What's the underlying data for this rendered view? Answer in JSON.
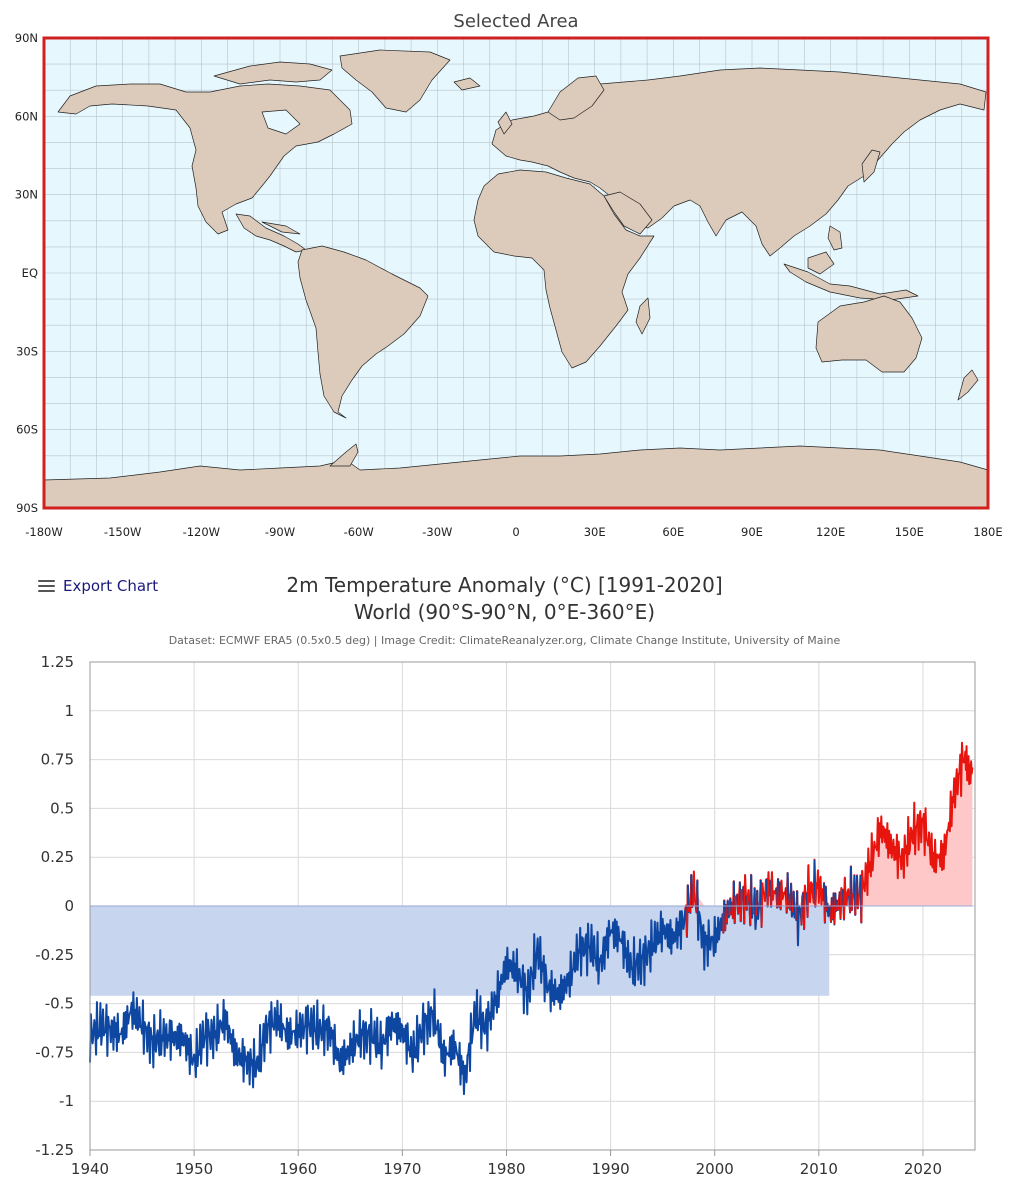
{
  "map": {
    "title": "Selected Area",
    "lat_labels": [
      "90N",
      "60N",
      "30N",
      "EQ",
      "30S",
      "60S",
      "90S"
    ],
    "lon_labels": [
      "-180W",
      "-150W",
      "-120W",
      "-90W",
      "-60W",
      "-30W",
      "0",
      "30E",
      "60E",
      "90E",
      "120E",
      "150E",
      "180E"
    ],
    "colors": {
      "ocean": "#e6f7fd",
      "land": "#dccbbb",
      "border": "#d21f1f",
      "grid": "#b9c3cc"
    }
  },
  "toolbar": {
    "export_label": "Export Chart",
    "menu_icon": "hamburger-menu-icon"
  },
  "chart": {
    "title_line1": "2m Temperature Anomaly (°C) [1991-2020]",
    "title_line2": "World (90°S-90°N, 0°E-360°E)",
    "credit": "Dataset: ECMWF ERA5 (0.5x0.5 deg) | Image Credit: ClimateReanalyzer.org, Climate Change Institute, University of Maine"
  },
  "chart_data": {
    "type": "line",
    "x_unit": "year",
    "ylim": [
      -1.25,
      1.25
    ],
    "xlim": [
      1940,
      2025
    ],
    "y_ticks": [
      "1.25",
      "1",
      "0.75",
      "0.5",
      "0.25",
      "0",
      "-0.25",
      "-0.5",
      "-0.75",
      "-1",
      "-1.25"
    ],
    "x_ticks": [
      "1940",
      "1950",
      "1960",
      "1970",
      "1980",
      "1990",
      "2000",
      "2010",
      "2020"
    ],
    "grid": true,
    "colors": {
      "positive_line": "#e8150f",
      "negative_line": "#0d47a1",
      "positive_fill": "#fec8c8",
      "negative_fill": "#c8d5ef"
    },
    "series": [
      {
        "x": [
          1940,
          1941,
          1942,
          1943,
          1944,
          1945,
          1946,
          1947,
          1948,
          1949,
          1950,
          1951,
          1952,
          1953,
          1954,
          1955,
          1956,
          1957,
          1958,
          1959,
          1960,
          1961,
          1962,
          1963,
          1964,
          1965,
          1966,
          1967,
          1968,
          1969,
          1970,
          1971,
          1972,
          1973,
          1974,
          1975,
          1976,
          1977,
          1978,
          1979,
          1980,
          1981,
          1982,
          1983,
          1984,
          1985,
          1986,
          1987,
          1988,
          1989,
          1990,
          1991,
          1992,
          1993,
          1994,
          1995,
          1996,
          1997,
          1998,
          1999,
          2000,
          2001,
          2002,
          2003,
          2004,
          2005,
          2006,
          2007,
          2008,
          2009,
          2010,
          2011,
          2012,
          2013,
          2014,
          2015,
          2016,
          2017,
          2018,
          2019,
          2020,
          2021,
          2022,
          2023,
          2024,
          2024.75
        ],
        "values": [
          -0.66,
          -0.62,
          -0.63,
          -0.66,
          -0.53,
          -0.61,
          -0.7,
          -0.67,
          -0.67,
          -0.68,
          -0.8,
          -0.66,
          -0.66,
          -0.58,
          -0.76,
          -0.79,
          -0.83,
          -0.62,
          -0.58,
          -0.66,
          -0.64,
          -0.6,
          -0.64,
          -0.63,
          -0.8,
          -0.73,
          -0.66,
          -0.66,
          -0.72,
          -0.6,
          -0.64,
          -0.76,
          -0.62,
          -0.55,
          -0.78,
          -0.71,
          -0.88,
          -0.55,
          -0.62,
          -0.48,
          -0.3,
          -0.33,
          -0.45,
          -0.23,
          -0.42,
          -0.46,
          -0.38,
          -0.22,
          -0.2,
          -0.3,
          -0.12,
          -0.17,
          -0.32,
          -0.28,
          -0.2,
          -0.12,
          -0.17,
          -0.08,
          0.08,
          -0.2,
          -0.17,
          -0.05,
          0.02,
          0.05,
          -0.03,
          0.1,
          0.06,
          0.06,
          -0.06,
          0.07,
          0.11,
          -0.03,
          0.02,
          0.06,
          0.06,
          0.23,
          0.4,
          0.3,
          0.24,
          0.37,
          0.43,
          0.24,
          0.26,
          0.58,
          0.78,
          0.71
        ]
      }
    ]
  }
}
